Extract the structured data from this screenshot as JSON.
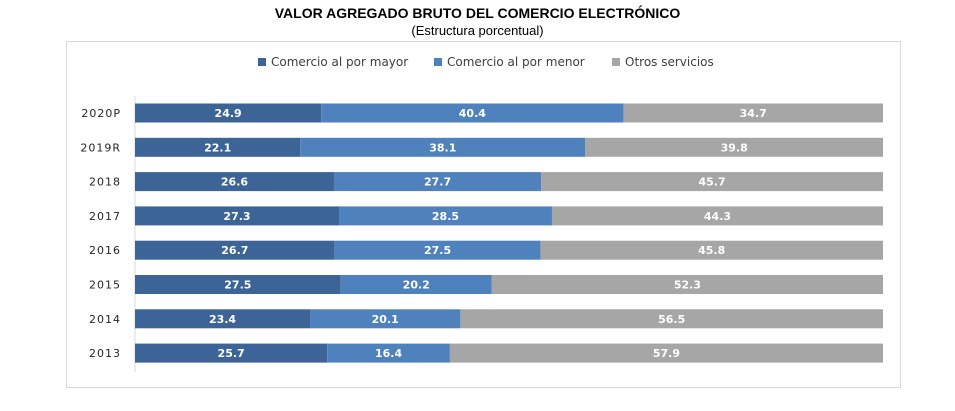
{
  "title": "VALOR AGREGADO BRUTO DEL COMERCIO ELECTRÓNICO",
  "subtitle": "(Estructura  porcentual)",
  "colors": {
    "mayor": "#3c6496",
    "menor": "#4f81bd",
    "otros": "#a6a6a6"
  },
  "chart_data": {
    "type": "bar",
    "orientation": "horizontal",
    "stacked": "100%",
    "categories": [
      "2020P",
      "2019R",
      "2018",
      "2017",
      "2016",
      "2015",
      "2014",
      "2013"
    ],
    "series": [
      {
        "name": "Comercio al por mayor",
        "values": [
          24.9,
          22.1,
          26.6,
          27.3,
          26.7,
          27.5,
          23.4,
          25.7
        ]
      },
      {
        "name": "Comercio al por menor",
        "values": [
          40.4,
          38.1,
          27.7,
          28.5,
          27.5,
          20.2,
          20.1,
          16.4
        ]
      },
      {
        "name": "Otros servicios",
        "values": [
          34.7,
          39.8,
          45.7,
          44.3,
          45.8,
          52.3,
          56.5,
          57.9
        ]
      }
    ],
    "legend": "top-center",
    "grid": false,
    "data_labels": true
  }
}
